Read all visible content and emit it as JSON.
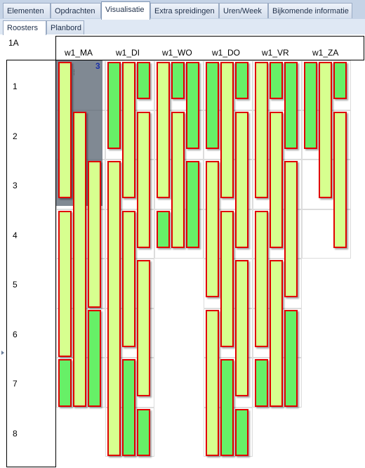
{
  "tabs": [
    {
      "label": "Elementen",
      "active": false
    },
    {
      "label": "Opdrachten",
      "active": false
    },
    {
      "label": "Visualisatie",
      "active": true
    },
    {
      "label": "Extra spreidingen",
      "active": false
    },
    {
      "label": "Uren/Week",
      "active": false
    },
    {
      "label": "Bijkomende informatie",
      "active": false
    }
  ],
  "subtabs": [
    {
      "label": "Roosters",
      "active": true
    },
    {
      "label": "Planbord",
      "active": false
    }
  ],
  "class_name": "1A",
  "days": [
    "w1_MA",
    "w1_DI",
    "w1_WO",
    "w1_DO",
    "w1_VR",
    "w1_ZA"
  ],
  "periods": [
    "1",
    "2",
    "3",
    "4",
    "5",
    "6",
    "7",
    "8"
  ],
  "selected_badge": "3",
  "colors": {
    "bar_border": "#e00000",
    "light_fill": "#d7ff8f",
    "dark_fill": "#67f067",
    "selection": "#606c78"
  },
  "schedule": [
    {
      "day": "w1_MA",
      "periods": 7,
      "bars": [
        {
          "col": 0,
          "start": 0,
          "end": 2.8,
          "tone": "light"
        },
        {
          "col": 0,
          "start": 3,
          "end": 6,
          "tone": "light"
        },
        {
          "col": 0,
          "start": 6,
          "end": 7,
          "tone": "dark"
        },
        {
          "col": 1,
          "start": 1,
          "end": 7,
          "tone": "light"
        },
        {
          "col": 2,
          "start": 2,
          "end": 5,
          "tone": "light"
        },
        {
          "col": 2,
          "start": 5,
          "end": 7,
          "tone": "dark"
        }
      ]
    },
    {
      "day": "w1_DI",
      "periods": 8,
      "bars": [
        {
          "col": 0,
          "start": 0,
          "end": 1.8,
          "tone": "dark"
        },
        {
          "col": 0,
          "start": 2,
          "end": 8,
          "tone": "light"
        },
        {
          "col": 1,
          "start": 0,
          "end": 2.8,
          "tone": "light"
        },
        {
          "col": 1,
          "start": 3,
          "end": 5.8,
          "tone": "light"
        },
        {
          "col": 1,
          "start": 6,
          "end": 8,
          "tone": "dark"
        },
        {
          "col": 2,
          "start": 0,
          "end": 0.8,
          "tone": "dark"
        },
        {
          "col": 2,
          "start": 1,
          "end": 3.8,
          "tone": "light"
        },
        {
          "col": 2,
          "start": 4,
          "end": 6.8,
          "tone": "light"
        },
        {
          "col": 2,
          "start": 7,
          "end": 8,
          "tone": "dark"
        }
      ]
    },
    {
      "day": "w1_WO",
      "periods": 4,
      "bars": [
        {
          "col": 0,
          "start": 0,
          "end": 2.8,
          "tone": "light"
        },
        {
          "col": 0,
          "start": 3,
          "end": 3.8,
          "tone": "dark"
        },
        {
          "col": 1,
          "start": 0,
          "end": 0.8,
          "tone": "dark"
        },
        {
          "col": 1,
          "start": 1,
          "end": 3.8,
          "tone": "light"
        },
        {
          "col": 2,
          "start": 0,
          "end": 1.8,
          "tone": "dark"
        },
        {
          "col": 2,
          "start": 2,
          "end": 3.8,
          "tone": "dark"
        }
      ]
    },
    {
      "day": "w1_DO",
      "periods": 8,
      "bars": [
        {
          "col": 0,
          "start": 0,
          "end": 1.8,
          "tone": "dark"
        },
        {
          "col": 0,
          "start": 2,
          "end": 4.8,
          "tone": "light"
        },
        {
          "col": 0,
          "start": 5,
          "end": 8,
          "tone": "light"
        },
        {
          "col": 1,
          "start": 0,
          "end": 2.8,
          "tone": "light"
        },
        {
          "col": 1,
          "start": 3,
          "end": 5.8,
          "tone": "light"
        },
        {
          "col": 1,
          "start": 6,
          "end": 8,
          "tone": "dark"
        },
        {
          "col": 2,
          "start": 0,
          "end": 0.8,
          "tone": "dark"
        },
        {
          "col": 2,
          "start": 1,
          "end": 3.8,
          "tone": "light"
        },
        {
          "col": 2,
          "start": 4,
          "end": 6.8,
          "tone": "light"
        },
        {
          "col": 2,
          "start": 7,
          "end": 8,
          "tone": "dark"
        }
      ]
    },
    {
      "day": "w1_VR",
      "periods": 7,
      "bars": [
        {
          "col": 0,
          "start": 0,
          "end": 2.8,
          "tone": "light"
        },
        {
          "col": 0,
          "start": 3,
          "end": 5.8,
          "tone": "light"
        },
        {
          "col": 0,
          "start": 6,
          "end": 7,
          "tone": "dark"
        },
        {
          "col": 1,
          "start": 0,
          "end": 0.8,
          "tone": "dark"
        },
        {
          "col": 1,
          "start": 1,
          "end": 3.8,
          "tone": "light"
        },
        {
          "col": 1,
          "start": 4,
          "end": 7,
          "tone": "light"
        },
        {
          "col": 2,
          "start": 0,
          "end": 1.8,
          "tone": "dark"
        },
        {
          "col": 2,
          "start": 2,
          "end": 4.8,
          "tone": "light"
        },
        {
          "col": 2,
          "start": 5,
          "end": 7,
          "tone": "dark"
        }
      ]
    },
    {
      "day": "w1_ZA",
      "periods": 4,
      "bars": [
        {
          "col": 0,
          "start": 0,
          "end": 1.8,
          "tone": "dark"
        },
        {
          "col": 1,
          "start": 0,
          "end": 2.8,
          "tone": "light"
        },
        {
          "col": 2,
          "start": 0,
          "end": 0.8,
          "tone": "dark"
        },
        {
          "col": 2,
          "start": 1,
          "end": 3.8,
          "tone": "light"
        }
      ]
    }
  ]
}
